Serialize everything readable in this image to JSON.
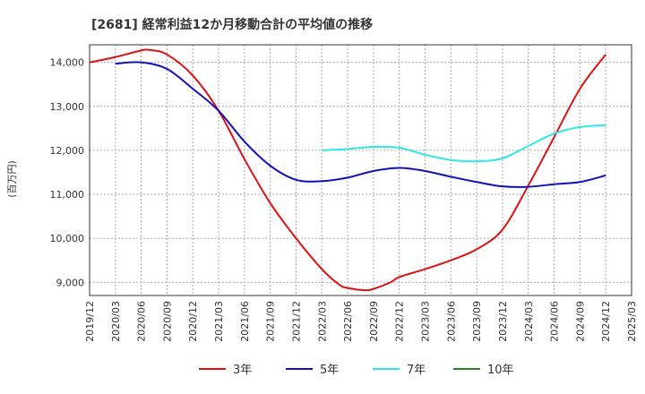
{
  "chart_data": {
    "type": "line",
    "title": "[2681]  経常利益12か月移動合計の平均値の推移",
    "ylabel": "(百万円)",
    "xlabel": "",
    "ylim": [
      8700,
      14400
    ],
    "yticks": [
      9000,
      10000,
      11000,
      12000,
      13000,
      14000
    ],
    "ytick_labels": [
      "9,000",
      "10,000",
      "11,000",
      "12,000",
      "13,000",
      "14,000"
    ],
    "xlim": [
      "2019-12",
      "2025-03"
    ],
    "xtick_labels": [
      "2019/12",
      "2020/03",
      "2020/06",
      "2020/09",
      "2020/12",
      "2021/03",
      "2021/06",
      "2021/09",
      "2021/12",
      "2022/03",
      "2022/06",
      "2022/09",
      "2022/12",
      "2023/03",
      "2023/06",
      "2023/09",
      "2023/12",
      "2024/03",
      "2024/06",
      "2024/09",
      "2024/12",
      "2025/03"
    ],
    "grid": true,
    "legend_position": "bottom",
    "series": [
      {
        "name": "3年",
        "color": "#dd1111",
        "x": [
          "2019-12",
          "2020-03",
          "2020-06",
          "2020-07",
          "2020-09",
          "2020-12",
          "2021-03",
          "2021-06",
          "2021-09",
          "2021-12",
          "2022-03",
          "2022-05",
          "2022-06",
          "2022-08",
          "2022-09",
          "2022-11",
          "2022-12",
          "2023-03",
          "2023-06",
          "2023-09",
          "2023-12",
          "2024-03",
          "2024-06",
          "2024-09",
          "2024-12"
        ],
        "values": [
          14000,
          14120,
          14270,
          14280,
          14180,
          13700,
          12900,
          11800,
          10800,
          10000,
          9300,
          8950,
          8870,
          8820,
          8850,
          9000,
          9120,
          9300,
          9500,
          9750,
          10200,
          11200,
          12300,
          13400,
          14180
        ]
      },
      {
        "name": "5年",
        "color": "#1111bb",
        "x": [
          "2020-03",
          "2020-06",
          "2020-09",
          "2020-12",
          "2021-03",
          "2021-06",
          "2021-09",
          "2021-12",
          "2022-03",
          "2022-06",
          "2022-09",
          "2022-12",
          "2023-03",
          "2023-06",
          "2023-09",
          "2023-12",
          "2024-03",
          "2024-06",
          "2024-09",
          "2024-12"
        ],
        "values": [
          13970,
          14000,
          13850,
          13400,
          12900,
          12200,
          11650,
          11330,
          11300,
          11380,
          11530,
          11600,
          11530,
          11400,
          11280,
          11180,
          11170,
          11230,
          11280,
          11430
        ]
      },
      {
        "name": "7年",
        "color": "#33e5e5",
        "x": [
          "2022-03",
          "2022-06",
          "2022-09",
          "2022-12",
          "2023-03",
          "2023-06",
          "2023-09",
          "2023-12",
          "2024-03",
          "2024-06",
          "2024-09",
          "2024-12"
        ],
        "values": [
          12000,
          12030,
          12080,
          12060,
          11900,
          11780,
          11750,
          11820,
          12100,
          12380,
          12530,
          12570
        ]
      },
      {
        "name": "10年",
        "color": "#228822",
        "x": [],
        "values": []
      }
    ]
  }
}
